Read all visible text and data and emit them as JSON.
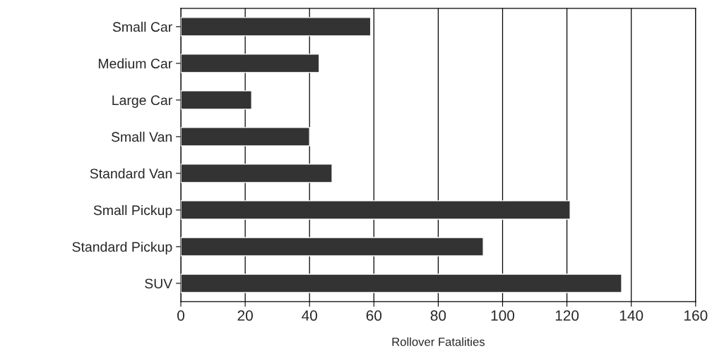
{
  "chart_data": {
    "type": "bar",
    "orientation": "horizontal",
    "xlabel": "Rollover Fatalities",
    "categories": [
      "Small Car",
      "Medium Car",
      "Large Car",
      "Small Van",
      "Standard Van",
      "Small Pickup",
      "Standard Pickup",
      "SUV"
    ],
    "values": [
      59,
      43,
      22,
      40,
      47,
      121,
      94,
      137
    ],
    "color": "#333333",
    "xlim": [
      0,
      160
    ],
    "xticks": [
      0,
      20,
      40,
      60,
      80,
      100,
      120,
      140,
      160
    ],
    "grid": "x",
    "legend": false
  }
}
